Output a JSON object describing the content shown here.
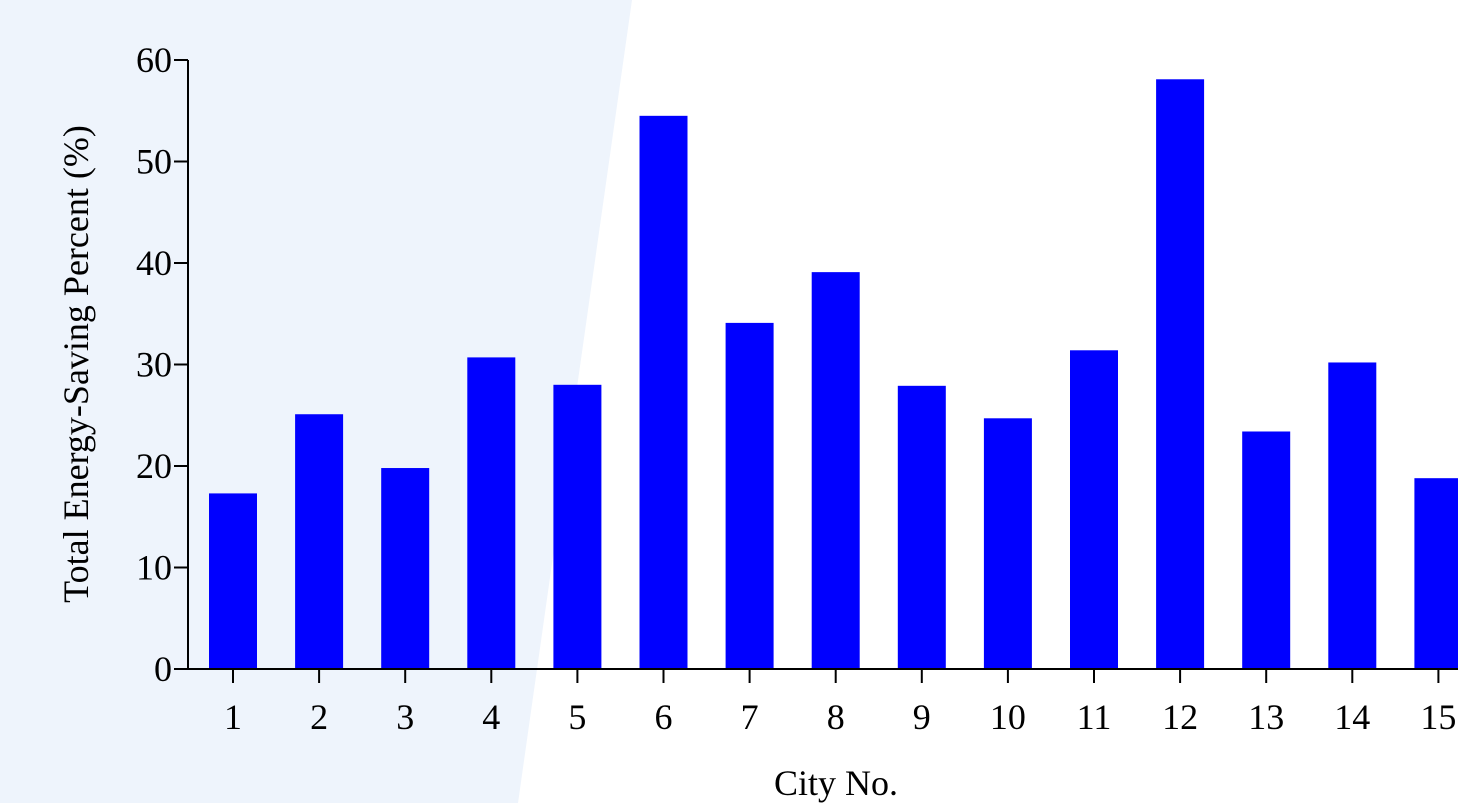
{
  "chart_data": {
    "type": "bar",
    "title": "",
    "xlabel": "City No.",
    "ylabel": "Total Energy-Saving Percent (%)",
    "categories": [
      "1",
      "2",
      "3",
      "4",
      "5",
      "6",
      "7",
      "8",
      "9",
      "10",
      "11",
      "12",
      "13",
      "14",
      "15"
    ],
    "values": [
      17.3,
      25.1,
      19.8,
      30.7,
      28.0,
      54.5,
      34.1,
      39.1,
      27.9,
      24.7,
      31.4,
      58.1,
      23.4,
      30.2,
      18.8
    ],
    "ylim": [
      0,
      60
    ],
    "yticks": [
      0,
      10,
      20,
      30,
      40,
      50,
      60
    ],
    "grid": false,
    "bar_color": "#0000ff",
    "background_band_color": "#eef4fc"
  }
}
